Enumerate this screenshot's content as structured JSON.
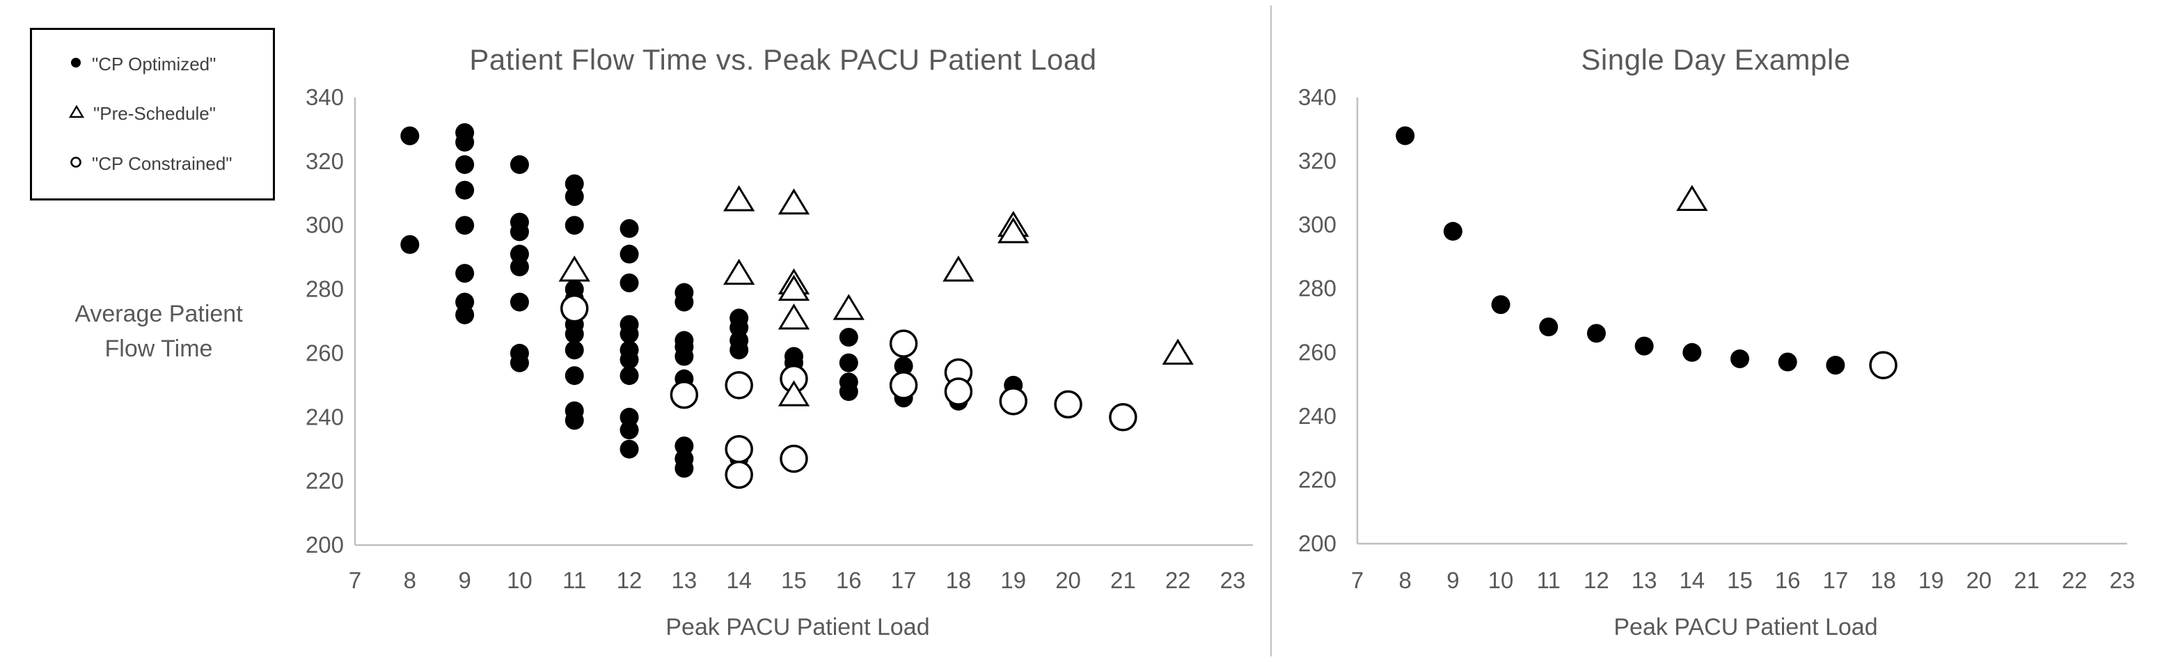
{
  "colors": {
    "text": "#595959",
    "legend_text": "#404040",
    "axis_line": "#bfbfbf",
    "marker": "#000000",
    "divider": "#bfbfbf",
    "background": "#ffffff"
  },
  "legend": {
    "items": [
      {
        "label": "\"CP Optimized\"",
        "marker": "filled-circle"
      },
      {
        "label": "\"Pre-Schedule\"",
        "marker": "open-triangle"
      },
      {
        "label": "\"CP Constrained\"",
        "marker": "open-circle"
      }
    ]
  },
  "left_panel": {
    "title": "Patient Flow Time vs. Peak PACU Patient Load",
    "y_axis_label_line1": "Average Patient",
    "y_axis_label_line2": "Flow Time",
    "x_axis_label": "Peak PACU Patient Load"
  },
  "right_panel": {
    "title": "Single Day Example",
    "x_axis_label": "Peak PACU Patient Load"
  },
  "chart_data": [
    {
      "type": "scatter",
      "title": "Patient Flow Time vs. Peak PACU Patient Load",
      "xlabel": "Peak PACU Patient Load",
      "ylabel": "Average Patient Flow Time",
      "xlim": [
        7,
        23
      ],
      "ylim": [
        200,
        340
      ],
      "x_ticks": [
        7,
        8,
        9,
        10,
        11,
        12,
        13,
        14,
        15,
        16,
        17,
        18,
        19,
        20,
        21,
        22,
        23
      ],
      "y_ticks": [
        200,
        220,
        240,
        260,
        280,
        300,
        320,
        340
      ],
      "grid": false,
      "legend_position": "outside-top-left",
      "series": [
        {
          "name": "\"CP Optimized\"",
          "marker": "filled-circle",
          "points": [
            [
              8,
              328
            ],
            [
              8,
              294
            ],
            [
              9,
              329
            ],
            [
              9,
              326
            ],
            [
              9,
              319
            ],
            [
              9,
              311
            ],
            [
              9,
              300
            ],
            [
              9,
              285
            ],
            [
              9,
              276
            ],
            [
              9,
              272
            ],
            [
              10,
              319
            ],
            [
              10,
              301
            ],
            [
              10,
              298
            ],
            [
              10,
              291
            ],
            [
              10,
              287
            ],
            [
              10,
              276
            ],
            [
              10,
              260
            ],
            [
              10,
              257
            ],
            [
              11,
              313
            ],
            [
              11,
              309
            ],
            [
              11,
              300
            ],
            [
              11,
              280
            ],
            [
              11,
              277
            ],
            [
              11,
              269
            ],
            [
              11,
              266
            ],
            [
              11,
              261
            ],
            [
              11,
              253
            ],
            [
              11,
              242
            ],
            [
              11,
              239
            ],
            [
              12,
              299
            ],
            [
              12,
              291
            ],
            [
              12,
              282
            ],
            [
              12,
              269
            ],
            [
              12,
              266
            ],
            [
              12,
              261
            ],
            [
              12,
              258
            ],
            [
              12,
              253
            ],
            [
              12,
              240
            ],
            [
              12,
              236
            ],
            [
              12,
              230
            ],
            [
              13,
              279
            ],
            [
              13,
              276
            ],
            [
              13,
              264
            ],
            [
              13,
              262
            ],
            [
              13,
              259
            ],
            [
              13,
              252
            ],
            [
              13,
              231
            ],
            [
              13,
              227
            ],
            [
              13,
              224
            ],
            [
              14,
              271
            ],
            [
              14,
              268
            ],
            [
              14,
              264
            ],
            [
              14,
              261
            ],
            [
              14,
              227
            ],
            [
              15,
              259
            ],
            [
              15,
              257
            ],
            [
              16,
              265
            ],
            [
              16,
              257
            ],
            [
              16,
              251
            ],
            [
              16,
              248
            ],
            [
              17,
              256
            ],
            [
              17,
              246
            ],
            [
              18,
              245
            ],
            [
              19,
              250
            ]
          ]
        },
        {
          "name": "\"Pre-Schedule\"",
          "marker": "open-triangle",
          "points": [
            [
              11,
              286
            ],
            [
              14,
              308
            ],
            [
              14,
              285
            ],
            [
              15,
              307
            ],
            [
              15,
              282
            ],
            [
              15,
              280
            ],
            [
              15,
              271
            ],
            [
              15,
              247
            ],
            [
              16,
              274
            ],
            [
              18,
              286
            ],
            [
              19,
              300
            ],
            [
              19,
              298
            ],
            [
              22,
              260
            ]
          ]
        },
        {
          "name": "\"CP Constrained\"",
          "marker": "open-circle",
          "points": [
            [
              11,
              274
            ],
            [
              13,
              247
            ],
            [
              14,
              250
            ],
            [
              14,
              230
            ],
            [
              14,
              222
            ],
            [
              15,
              252
            ],
            [
              15,
              227
            ],
            [
              17,
              263
            ],
            [
              17,
              250
            ],
            [
              18,
              254
            ],
            [
              18,
              248
            ],
            [
              19,
              245
            ],
            [
              20,
              244
            ],
            [
              21,
              240
            ]
          ]
        }
      ]
    },
    {
      "type": "scatter",
      "title": "Single Day Example",
      "xlabel": "Peak PACU Patient Load",
      "ylabel": "",
      "xlim": [
        7,
        23
      ],
      "ylim": [
        200,
        340
      ],
      "x_ticks": [
        7,
        8,
        9,
        10,
        11,
        12,
        13,
        14,
        15,
        16,
        17,
        18,
        19,
        20,
        21,
        22,
        23
      ],
      "y_ticks": [
        200,
        220,
        240,
        260,
        280,
        300,
        320,
        340
      ],
      "grid": false,
      "legend_position": "none",
      "series": [
        {
          "name": "\"CP Optimized\"",
          "marker": "filled-circle",
          "points": [
            [
              8,
              328
            ],
            [
              9,
              298
            ],
            [
              10,
              275
            ],
            [
              11,
              268
            ],
            [
              12,
              266
            ],
            [
              13,
              262
            ],
            [
              14,
              260
            ],
            [
              15,
              258
            ],
            [
              16,
              257
            ],
            [
              17,
              256
            ]
          ]
        },
        {
          "name": "\"Pre-Schedule\"",
          "marker": "open-triangle",
          "points": [
            [
              14,
              308
            ]
          ]
        },
        {
          "name": "\"CP Constrained\"",
          "marker": "open-circle",
          "points": [
            [
              18,
              256
            ]
          ]
        }
      ]
    }
  ]
}
